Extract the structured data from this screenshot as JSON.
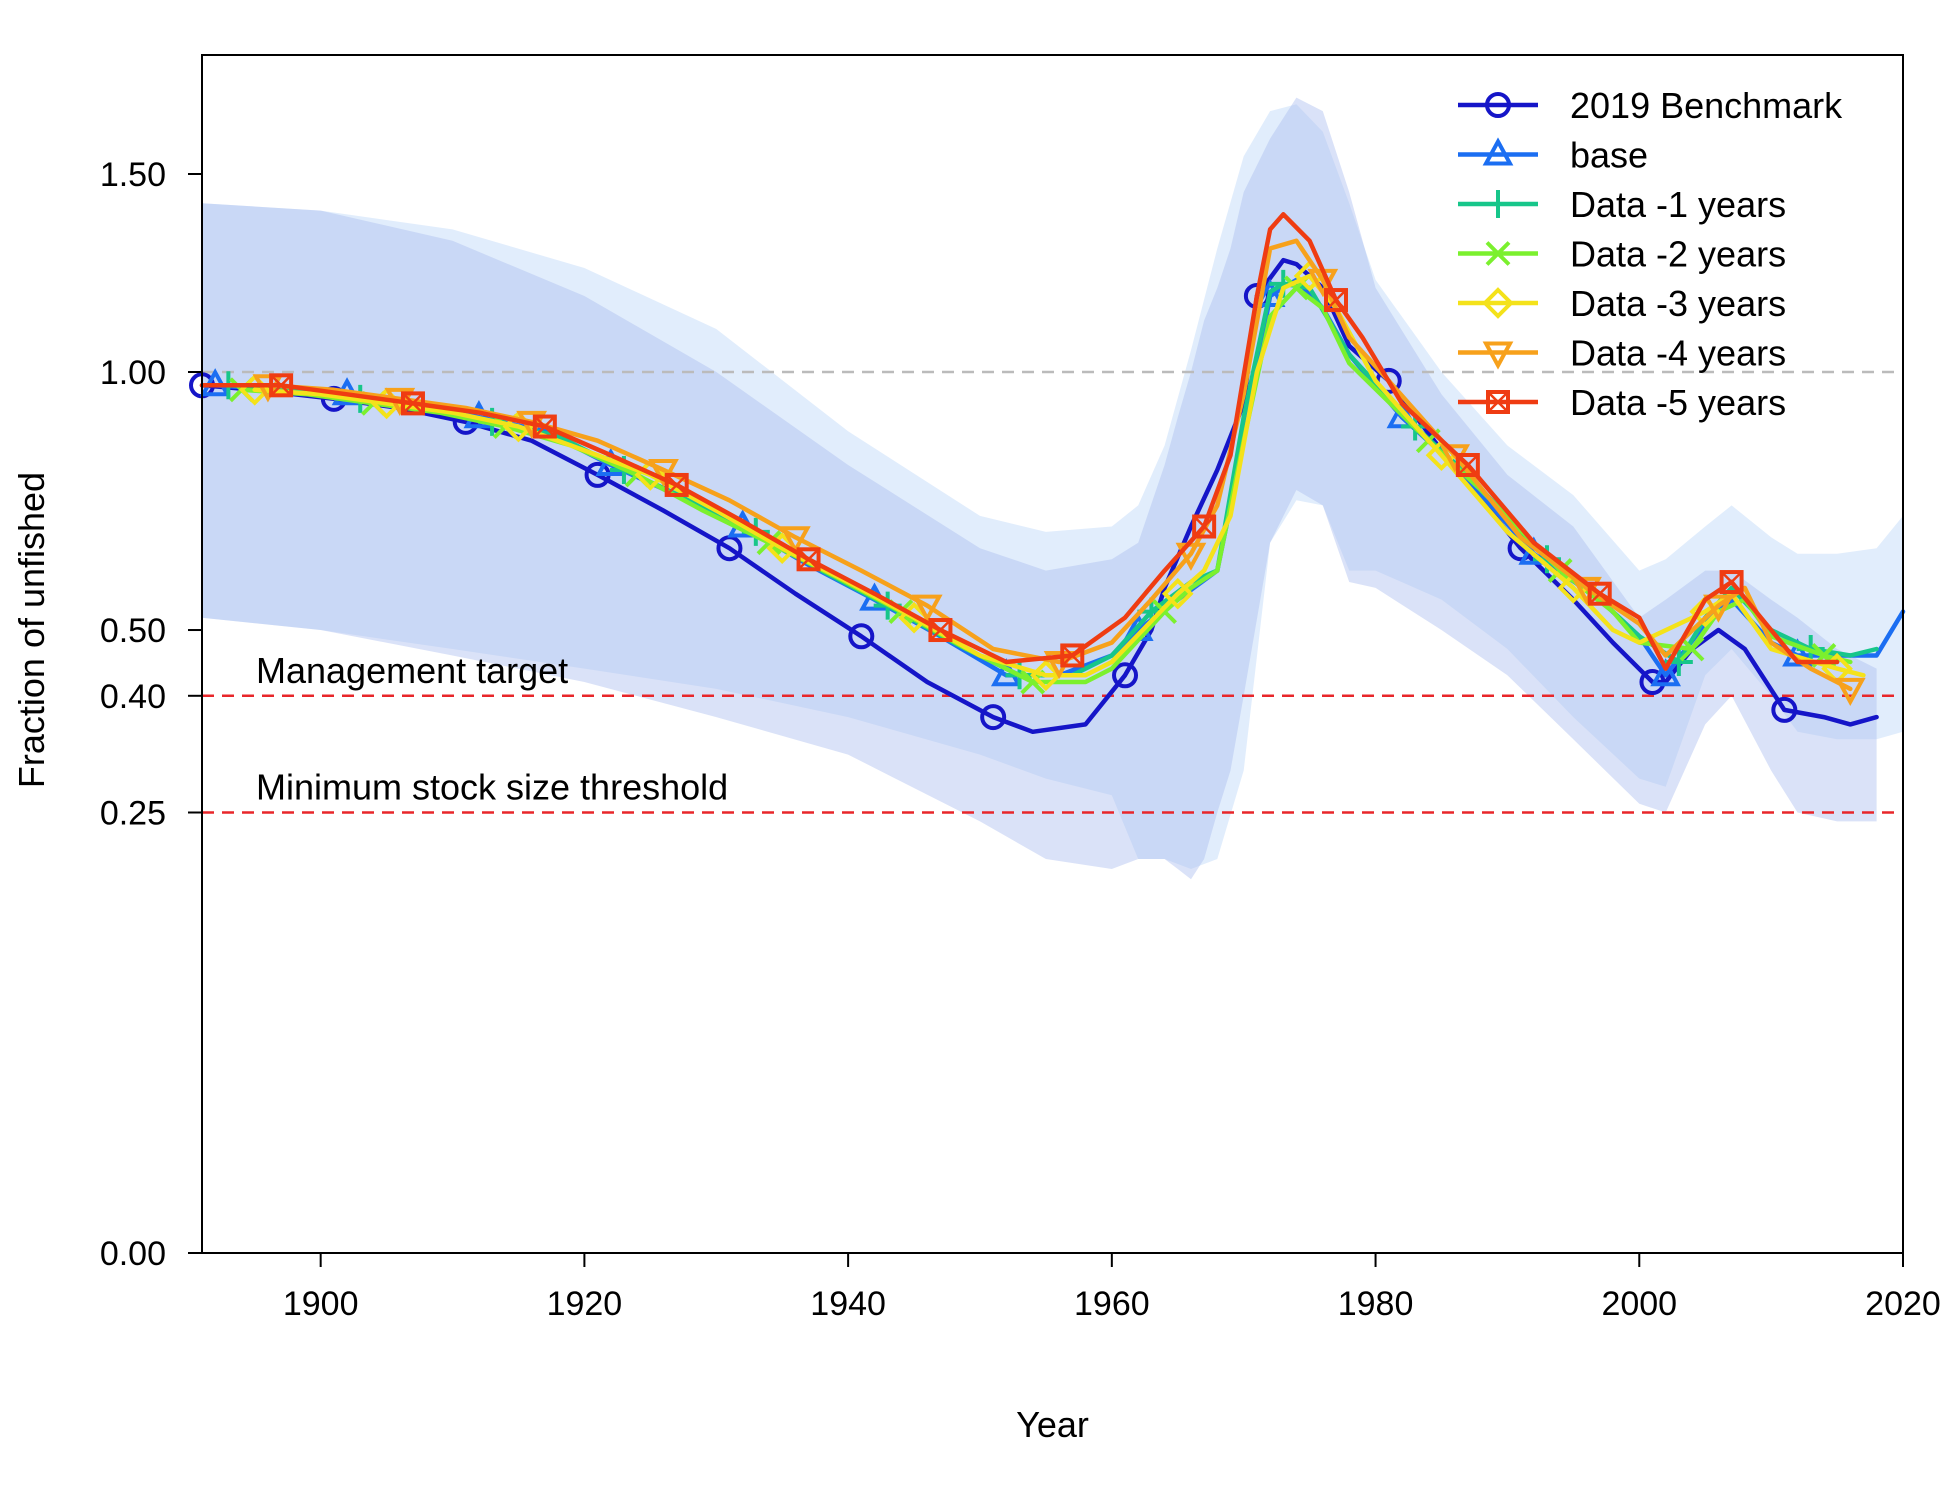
{
  "chart_data": {
    "type": "line",
    "title": "",
    "xlabel": "Year",
    "ylabel": "Fraction of unfished",
    "xlim": [
      1891,
      2020
    ],
    "x_ticks": [
      1900,
      1920,
      1940,
      1960,
      1980,
      2000,
      2020
    ],
    "y_ticks": [
      {
        "value": 0.0,
        "label": "0.00"
      },
      {
        "value": 0.25,
        "label": "0.25"
      },
      {
        "value": 0.4,
        "label": "0.40"
      },
      {
        "value": 0.5,
        "label": "0.50"
      },
      {
        "value": 1.0,
        "label": "1.00"
      },
      {
        "value": 1.5,
        "label": "1.50"
      }
    ],
    "y_scale_note": "nonlinear (square-root style)",
    "grid": false,
    "legend_position": "top-right",
    "reference_lines": [
      {
        "name": "unfished",
        "value": 1.0,
        "color": "#bbbbbb",
        "label": ""
      },
      {
        "name": "target",
        "value": 0.4,
        "color": "#e8262a",
        "label": "Management target"
      },
      {
        "name": "threshold",
        "value": 0.25,
        "color": "#e8262a",
        "label": "Minimum stock size threshold"
      }
    ],
    "bands": [
      {
        "color": "#c9dffa",
        "opacity": 0.55,
        "x": [
          1891,
          1900,
          1910,
          1920,
          1930,
          1940,
          1950,
          1955,
          1960,
          1962,
          1964,
          1966,
          1968,
          1970,
          1972,
          1974,
          1976,
          1978,
          1980,
          1985,
          1990,
          1995,
          2000,
          2002,
          2005,
          2007,
          2010,
          2012,
          2015,
          2018,
          2020
        ],
        "upper": [
          1.42,
          1.4,
          1.35,
          1.25,
          1.1,
          0.87,
          0.7,
          0.67,
          0.68,
          0.72,
          0.84,
          1.05,
          1.3,
          1.55,
          1.68,
          1.7,
          1.62,
          1.42,
          1.22,
          1.0,
          0.84,
          0.74,
          0.6,
          0.62,
          0.68,
          0.72,
          0.66,
          0.63,
          0.63,
          0.64,
          0.7
        ],
        "lower": [
          0.52,
          0.5,
          0.47,
          0.44,
          0.41,
          0.37,
          0.32,
          0.29,
          0.27,
          0.2,
          0.2,
          0.19,
          0.2,
          0.3,
          0.65,
          0.73,
          0.72,
          0.6,
          0.6,
          0.55,
          0.47,
          0.37,
          0.29,
          0.28,
          0.43,
          0.47,
          0.4,
          0.35,
          0.34,
          0.34,
          0.35
        ]
      },
      {
        "color": "#aebfef",
        "opacity": 0.45,
        "x": [
          1891,
          1900,
          1910,
          1920,
          1930,
          1940,
          1950,
          1955,
          1960,
          1962,
          1964,
          1965,
          1966,
          1967,
          1968,
          1969,
          1970,
          1972,
          1974,
          1976,
          1978,
          1980,
          1985,
          1990,
          1995,
          2000,
          2002,
          2005,
          2007,
          2010,
          2012,
          2015,
          2017,
          2018
        ],
        "upper": [
          1.42,
          1.4,
          1.32,
          1.18,
          1.0,
          0.8,
          0.64,
          0.6,
          0.62,
          0.65,
          0.8,
          0.9,
          1.0,
          1.12,
          1.2,
          1.3,
          1.45,
          1.6,
          1.72,
          1.68,
          1.45,
          1.2,
          0.95,
          0.78,
          0.68,
          0.52,
          0.55,
          0.6,
          0.6,
          0.55,
          0.52,
          0.47,
          0.45,
          0.44
        ],
        "lower": [
          0.52,
          0.5,
          0.46,
          0.42,
          0.37,
          0.32,
          0.24,
          0.2,
          0.19,
          0.2,
          0.2,
          0.19,
          0.18,
          0.2,
          0.25,
          0.3,
          0.4,
          0.65,
          0.75,
          0.72,
          0.58,
          0.57,
          0.5,
          0.43,
          0.34,
          0.26,
          0.25,
          0.36,
          0.4,
          0.3,
          0.25,
          0.24,
          0.24,
          0.24
        ]
      }
    ],
    "series": [
      {
        "name": "2019 Benchmark",
        "color": "#1515c8",
        "marker": "circle",
        "x": [
          1891,
          1895,
          1901,
          1906,
          1911,
          1916,
          1921,
          1926,
          1931,
          1936,
          1941,
          1946,
          1951,
          1954,
          1958,
          1961,
          1963,
          1964,
          1966,
          1968,
          1970,
          1971,
          1973,
          1974,
          1976,
          1978,
          1981,
          1985,
          1991,
          1995,
          1998,
          2001,
          2002,
          2004,
          2006,
          2008,
          2011,
          2014,
          2016,
          2018
        ],
        "y": [
          0.97,
          0.96,
          0.94,
          0.92,
          0.89,
          0.85,
          0.78,
          0.71,
          0.64,
          0.56,
          0.49,
          0.42,
          0.37,
          0.35,
          0.36,
          0.43,
          0.5,
          0.57,
          0.68,
          0.79,
          0.93,
          1.18,
          1.27,
          1.26,
          1.2,
          1.06,
          0.98,
          0.83,
          0.64,
          0.55,
          0.48,
          0.42,
          0.42,
          0.47,
          0.5,
          0.47,
          0.38,
          0.37,
          0.36,
          0.37
        ],
        "markers_x": [
          1891,
          1901,
          1911,
          1921,
          1931,
          1941,
          1951,
          1961,
          1971,
          1981,
          1991,
          2001,
          2011
        ]
      },
      {
        "name": "base",
        "color": "#1b6ef2",
        "marker": "triangle-up",
        "x": [
          1892,
          1897,
          1902,
          1907,
          1912,
          1917,
          1922,
          1927,
          1932,
          1937,
          1942,
          1947,
          1952,
          1956,
          1960,
          1962,
          1965,
          1968,
          1970,
          1972,
          1974,
          1976,
          1978,
          1982,
          1986,
          1992,
          1997,
          2000,
          2002,
          2005,
          2007,
          2010,
          2012,
          2015,
          2018,
          2020
        ],
        "y": [
          0.97,
          0.96,
          0.95,
          0.93,
          0.9,
          0.87,
          0.8,
          0.74,
          0.68,
          0.61,
          0.55,
          0.49,
          0.43,
          0.43,
          0.46,
          0.5,
          0.55,
          0.6,
          0.85,
          1.18,
          1.22,
          1.15,
          1.04,
          0.9,
          0.8,
          0.63,
          0.55,
          0.49,
          0.43,
          0.51,
          0.55,
          0.48,
          0.46,
          0.46,
          0.46,
          0.53
        ],
        "markers_x": [
          1892,
          1902,
          1912,
          1922,
          1932,
          1942,
          1952,
          1962,
          1972,
          1982,
          1992,
          2002,
          2012
        ]
      },
      {
        "name": "Data -1 years",
        "color": "#17c68a",
        "marker": "plus",
        "x": [
          1893,
          1898,
          1903,
          1908,
          1913,
          1918,
          1923,
          1928,
          1933,
          1938,
          1943,
          1948,
          1953,
          1957,
          1960,
          1963,
          1966,
          1968,
          1970,
          1972,
          1973,
          1975,
          1978,
          1983,
          1987,
          1993,
          1997,
          2000,
          2003,
          2005,
          2007,
          2010,
          2013,
          2016,
          2018
        ],
        "y": [
          0.97,
          0.96,
          0.94,
          0.92,
          0.89,
          0.86,
          0.79,
          0.73,
          0.67,
          0.6,
          0.54,
          0.48,
          0.43,
          0.43,
          0.46,
          0.53,
          0.58,
          0.6,
          0.9,
          1.19,
          1.21,
          1.2,
          1.04,
          0.88,
          0.78,
          0.62,
          0.55,
          0.49,
          0.45,
          0.52,
          0.57,
          0.5,
          0.47,
          0.46,
          0.47
        ],
        "markers_x": [
          1893,
          1903,
          1913,
          1923,
          1933,
          1943,
          1953,
          1963,
          1973,
          1983,
          1993,
          2003,
          2013
        ]
      },
      {
        "name": "Data -2 years",
        "color": "#7bf02e",
        "marker": "cross",
        "x": [
          1894,
          1899,
          1904,
          1909,
          1914,
          1919,
          1924,
          1929,
          1934,
          1939,
          1944,
          1949,
          1954,
          1958,
          1960,
          1964,
          1966,
          1968,
          1970,
          1972,
          1974,
          1976,
          1978,
          1984,
          1988,
          1994,
          1998,
          2000,
          2004,
          2006,
          2008,
          2010,
          2014,
          2016
        ],
        "y": [
          0.96,
          0.95,
          0.93,
          0.91,
          0.88,
          0.84,
          0.78,
          0.71,
          0.65,
          0.59,
          0.53,
          0.47,
          0.42,
          0.42,
          0.44,
          0.53,
          0.57,
          0.6,
          0.85,
          1.13,
          1.2,
          1.15,
          1.02,
          0.85,
          0.75,
          0.6,
          0.53,
          0.48,
          0.47,
          0.53,
          0.55,
          0.49,
          0.46,
          0.45
        ],
        "markers_x": [
          1894,
          1904,
          1914,
          1924,
          1934,
          1944,
          1954,
          1964,
          1974,
          1984,
          1994,
          2004,
          2014
        ]
      },
      {
        "name": "Data -3 years",
        "color": "#f4e21a",
        "marker": "diamond",
        "x": [
          1895,
          1900,
          1905,
          1910,
          1915,
          1920,
          1925,
          1930,
          1935,
          1940,
          1945,
          1950,
          1955,
          1958,
          1960,
          1965,
          1967,
          1969,
          1971,
          1973,
          1975,
          1977,
          1980,
          1985,
          1990,
          1995,
          1998,
          2000,
          2005,
          2007,
          2010,
          2015,
          2017
        ],
        "y": [
          0.96,
          0.95,
          0.93,
          0.91,
          0.88,
          0.83,
          0.78,
          0.71,
          0.64,
          0.58,
          0.52,
          0.46,
          0.43,
          0.43,
          0.45,
          0.56,
          0.6,
          0.7,
          1.0,
          1.2,
          1.23,
          1.15,
          0.98,
          0.82,
          0.67,
          0.57,
          0.5,
          0.48,
          0.53,
          0.56,
          0.47,
          0.44,
          0.43
        ],
        "markers_x": [
          1895,
          1905,
          1915,
          1925,
          1935,
          1945,
          1955,
          1965,
          1975,
          1985,
          1995,
          2005,
          2015
        ]
      },
      {
        "name": "Data -4 years",
        "color": "#f7a11b",
        "marker": "triangle-down",
        "x": [
          1896,
          1901,
          1906,
          1911,
          1916,
          1921,
          1926,
          1931,
          1936,
          1941,
          1946,
          1951,
          1956,
          1960,
          1963,
          1966,
          1968,
          1970,
          1972,
          1974,
          1976,
          1978,
          1981,
          1986,
          1991,
          1996,
          2000,
          2002,
          2006,
          2008,
          2010,
          2013,
          2016
        ],
        "y": [
          0.97,
          0.96,
          0.94,
          0.92,
          0.89,
          0.85,
          0.79,
          0.73,
          0.66,
          0.6,
          0.54,
          0.47,
          0.45,
          0.48,
          0.55,
          0.63,
          0.72,
          0.95,
          1.3,
          1.32,
          1.22,
          1.08,
          0.98,
          0.82,
          0.66,
          0.57,
          0.51,
          0.46,
          0.54,
          0.57,
          0.48,
          0.44,
          0.41
        ],
        "markers_x": [
          1896,
          1906,
          1916,
          1926,
          1936,
          1946,
          1956,
          1966,
          1976,
          1986,
          1996,
          2006,
          2016
        ]
      },
      {
        "name": "Data -5 years",
        "color": "#ef3c12",
        "marker": "square",
        "x": [
          1891,
          1897,
          1902,
          1907,
          1912,
          1917,
          1922,
          1927,
          1932,
          1937,
          1942,
          1947,
          1952,
          1957,
          1961,
          1964,
          1967,
          1969,
          1971,
          1972,
          1973,
          1975,
          1977,
          1979,
          1982,
          1987,
          1992,
          1997,
          2000,
          2002,
          2005,
          2007,
          2010,
          2012,
          2015
        ],
        "y": [
          0.97,
          0.97,
          0.95,
          0.93,
          0.91,
          0.88,
          0.82,
          0.76,
          0.69,
          0.62,
          0.56,
          0.5,
          0.45,
          0.46,
          0.52,
          0.6,
          0.68,
          0.82,
          1.18,
          1.35,
          1.39,
          1.32,
          1.17,
          1.08,
          0.93,
          0.8,
          0.65,
          0.56,
          0.52,
          0.44,
          0.55,
          0.58,
          0.5,
          0.45,
          0.45
        ],
        "markers_x": [
          1897,
          1907,
          1917,
          1927,
          1937,
          1947,
          1957,
          1967,
          1977,
          1987,
          1997,
          2007
        ]
      }
    ]
  }
}
